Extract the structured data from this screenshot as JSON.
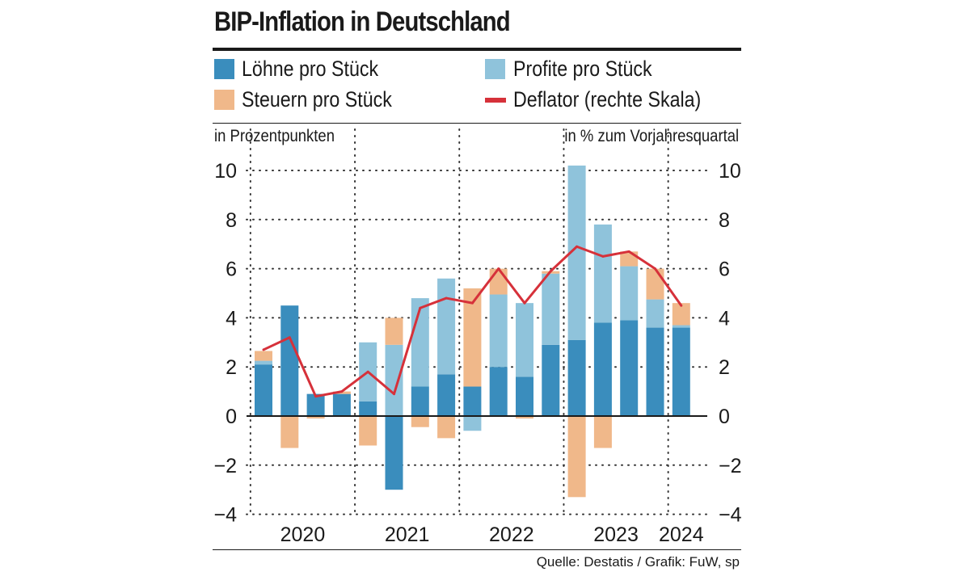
{
  "title": "BIP-Inflation in Deutschland",
  "legend": {
    "loehne": "Löhne pro Stück",
    "profite": "Profite pro Stück",
    "steuern": "Steuern pro Stück",
    "deflator": "Deflator (rechte Skala)"
  },
  "colors": {
    "loehne": "#3a8dbd",
    "profite": "#8fc3db",
    "steuern": "#f0b88a",
    "deflator": "#d6313a",
    "grid": "#333333"
  },
  "units": {
    "left": "in Prozentpunkten",
    "right": "in % zum Vorjahresquartal"
  },
  "source": "Quelle: Destatis / Grafik: FuW, sp",
  "chart_data": {
    "type": "bar",
    "stacked": true,
    "title": "BIP-Inflation in Deutschland",
    "ylabel": "in Prozentpunkten",
    "y2label": "in % zum Vorjahresquartal",
    "ylim": [
      -4,
      10
    ],
    "y2lim": [
      -4,
      10
    ],
    "yticks": [
      -4,
      -2,
      0,
      2,
      4,
      6,
      8,
      10
    ],
    "ytick_labels": [
      "−4",
      "−2",
      "0",
      "2",
      "4",
      "6",
      "8",
      "10"
    ],
    "categories": [
      "2020 Q1",
      "2020 Q2",
      "2020 Q3",
      "2020 Q4",
      "2021 Q1",
      "2021 Q2",
      "2021 Q3",
      "2021 Q4",
      "2022 Q1",
      "2022 Q2",
      "2022 Q3",
      "2022 Q4",
      "2023 Q1",
      "2023 Q2",
      "2023 Q3",
      "2023 Q4",
      "2024 Q1"
    ],
    "year_labels": [
      "2020",
      "2021",
      "2022",
      "2023",
      "2024"
    ],
    "series": [
      {
        "name": "Löhne pro Stück",
        "key": "loehne",
        "values": [
          2.1,
          4.5,
          0.9,
          0.9,
          0.6,
          -3.0,
          1.2,
          1.7,
          1.2,
          2.0,
          1.6,
          2.9,
          3.1,
          3.8,
          3.9,
          3.6,
          3.6
        ]
      },
      {
        "name": "Profite pro Stück",
        "key": "profite",
        "values": [
          0.15,
          0.0,
          0.0,
          0.0,
          2.4,
          2.9,
          3.6,
          3.9,
          -0.6,
          2.95,
          3.0,
          2.9,
          7.1,
          4.0,
          2.2,
          1.15,
          0.1
        ]
      },
      {
        "name": "Steuern pro Stück",
        "key": "steuern",
        "values": [
          0.4,
          -1.3,
          -0.1,
          0.1,
          -1.2,
          1.1,
          -0.45,
          -0.9,
          4.0,
          1.05,
          -0.1,
          0.1,
          -3.3,
          -1.3,
          0.6,
          1.25,
          0.9
        ]
      }
    ],
    "line": {
      "name": "Deflator (rechte Skala)",
      "key": "deflator",
      "values": [
        2.7,
        3.2,
        0.8,
        1.0,
        1.8,
        0.9,
        4.4,
        4.8,
        4.6,
        6.0,
        4.6,
        5.9,
        6.9,
        6.5,
        6.7,
        6.0,
        4.5
      ]
    },
    "grid": true
  }
}
